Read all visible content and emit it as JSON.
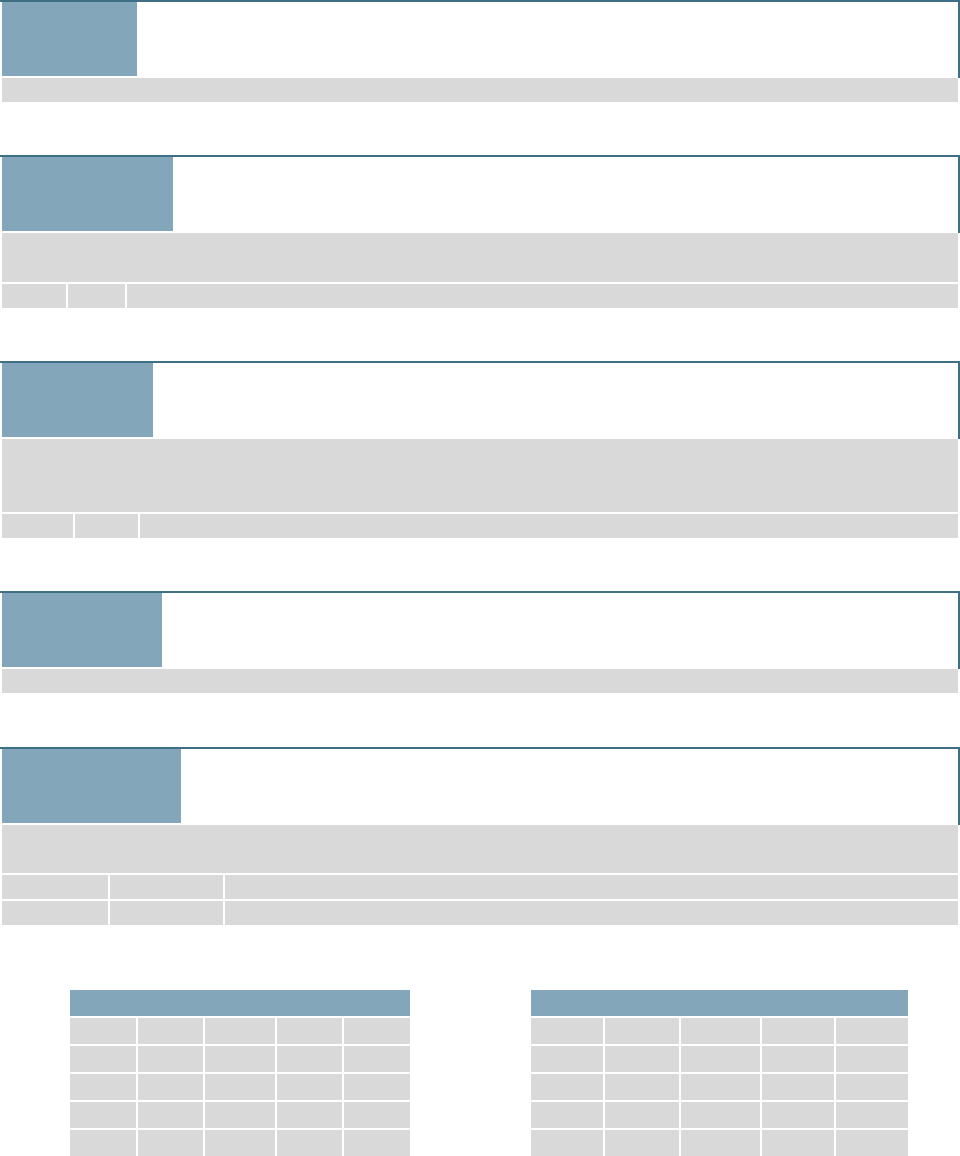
{
  "sections": [
    {
      "tab": "",
      "title": "",
      "bar": ""
    },
    {
      "tab": "",
      "title": "",
      "description": "",
      "row": [
        "",
        "",
        ""
      ]
    },
    {
      "tab": "",
      "title": "",
      "description": "",
      "row": [
        "",
        "",
        ""
      ]
    },
    {
      "tab": "",
      "title": "",
      "bar": ""
    },
    {
      "tab": "",
      "title": "",
      "description": "",
      "rows": [
        [
          "",
          "",
          ""
        ],
        [
          "",
          "",
          ""
        ]
      ]
    }
  ],
  "tables": [
    {
      "header": "",
      "rows": [
        [
          "",
          "",
          "",
          "",
          ""
        ],
        [
          "",
          "",
          "",
          "",
          ""
        ],
        [
          "",
          "",
          "",
          "",
          ""
        ],
        [
          "",
          "",
          "",
          "",
          ""
        ],
        [
          "",
          "",
          "",
          "",
          ""
        ]
      ]
    },
    {
      "header": "",
      "rows": [
        [
          "",
          "",
          "",
          "",
          ""
        ],
        [
          "",
          "",
          "",
          "",
          ""
        ],
        [
          "",
          "",
          "",
          "",
          ""
        ],
        [
          "",
          "",
          "",
          "",
          ""
        ],
        [
          "",
          "",
          "",
          "",
          ""
        ]
      ]
    }
  ],
  "colors": {
    "accent": "#84a6bb",
    "border": "#3f6f85",
    "panel": "#d9d9d9",
    "background": "#ffffff"
  }
}
